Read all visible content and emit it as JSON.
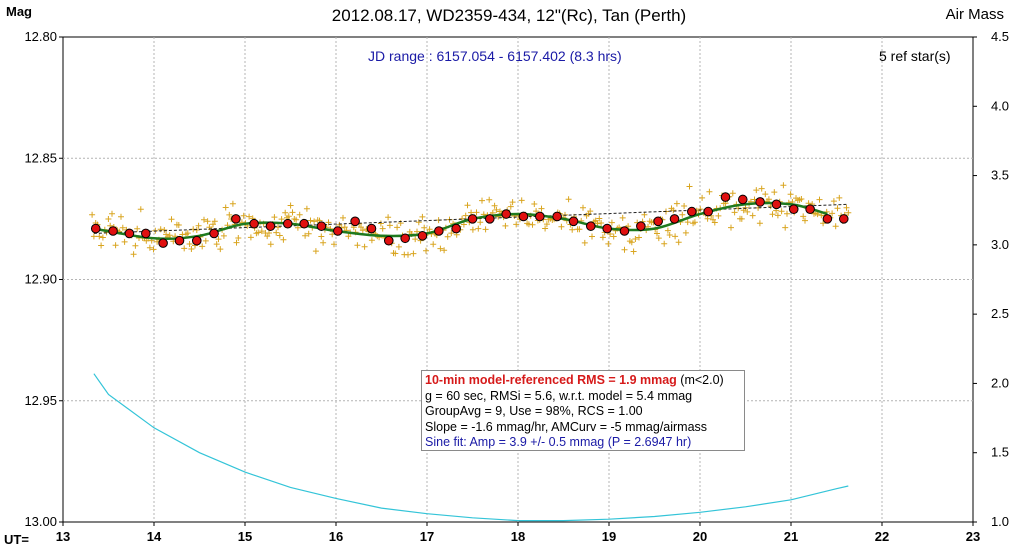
{
  "header": {
    "title": "2012.08.17, WD2359-434, 12\"(Rc), Tan (Perth)",
    "y_left_label": "Mag",
    "y_right_label": "Air Mass",
    "x_label": "UT="
  },
  "annotations": {
    "jd_range": "JD range : 6157.054 - 6157.402 (8.3 hrs)",
    "ref_stars": "5 ref star(s)"
  },
  "stats_box": {
    "rms_label": "10-min model-referenced RMS = 1.9 mmag",
    "rms_note": " (m<2.0)",
    "line2": "g = 60 sec, RMSi = 5.6, w.r.t. model = 5.4 mmag",
    "line3": "GroupAvg  = 9, Use = 98%, RCS = 1.00",
    "line4": "Slope = -1.6 mmag/hr,  AMCurv  = -5  mmag/airmass",
    "line5": "Sine fit: Amp = 3.9 +/- 0.5 mmag (P = 2.6947  hr)"
  },
  "colors": {
    "raw_points": "#d9a520",
    "group_avg_fill": "#e01010",
    "model_line": "#1f7a1f",
    "trend_line": "#222222",
    "airmass_line": "#33c4d8",
    "grid": "#b4b4b4"
  },
  "chart_data": {
    "type": "scatter",
    "title": "2012.08.17, WD2359-434, 12\"(Rc), Tan (Perth)",
    "xlabel": "UT=",
    "ylabel": "Mag",
    "y2label": "Air Mass",
    "xlim": [
      13,
      23
    ],
    "ylim": [
      12.8,
      13.0
    ],
    "y_inverted": true,
    "y2lim": [
      1.0,
      4.5
    ],
    "x_ticks": [
      "13",
      "14",
      "15",
      "16",
      "17",
      "18",
      "19",
      "20",
      "21",
      "22",
      "23"
    ],
    "y_ticks": [
      "12.80",
      "12.85",
      "12.90",
      "12.95",
      "13.00"
    ],
    "y2_ticks": [
      "1.0",
      "1.5",
      "2.0",
      "2.5",
      "3.0",
      "3.5",
      "4.0",
      "4.5"
    ],
    "grid": true,
    "series": [
      {
        "name": "GroupAvg",
        "x": [
          13.36,
          13.55,
          13.73,
          13.91,
          14.1,
          14.28,
          14.47,
          14.66,
          14.9,
          15.1,
          15.28,
          15.47,
          15.65,
          15.84,
          16.02,
          16.21,
          16.39,
          16.58,
          16.76,
          16.95,
          17.13,
          17.32,
          17.5,
          17.69,
          17.87,
          18.06,
          18.24,
          18.43,
          18.61,
          18.8,
          18.98,
          19.17,
          19.35,
          19.54,
          19.72,
          19.91,
          20.09,
          20.28,
          20.47,
          20.66,
          20.84,
          21.03,
          21.21,
          21.4,
          21.58
        ],
        "y": [
          12.879,
          12.88,
          12.881,
          12.881,
          12.885,
          12.884,
          12.884,
          12.881,
          12.875,
          12.877,
          12.878,
          12.877,
          12.877,
          12.878,
          12.88,
          12.876,
          12.879,
          12.884,
          12.883,
          12.882,
          12.88,
          12.879,
          12.875,
          12.875,
          12.873,
          12.874,
          12.874,
          12.874,
          12.876,
          12.878,
          12.879,
          12.88,
          12.878,
          12.876,
          12.875,
          12.872,
          12.872,
          12.866,
          12.867,
          12.868,
          12.869,
          12.871,
          12.871,
          12.875,
          12.875
        ]
      },
      {
        "name": "Sine model",
        "x": [
          13.34,
          14.0,
          14.5,
          15.0,
          15.5,
          16.0,
          16.5,
          17.0,
          17.5,
          18.0,
          18.5,
          19.0,
          19.5,
          20.0,
          20.5,
          21.0,
          21.4
        ],
        "y": [
          12.879,
          12.883,
          12.882,
          12.877,
          12.877,
          12.88,
          12.882,
          12.881,
          12.875,
          12.873,
          12.875,
          12.879,
          12.879,
          12.873,
          12.869,
          12.869,
          12.873
        ]
      },
      {
        "name": "Linear trend",
        "x": [
          13.34,
          21.63
        ],
        "y": [
          12.881,
          12.869
        ]
      },
      {
        "name": "Air Mass",
        "axis": "right",
        "x": [
          13.34,
          13.5,
          14.0,
          14.5,
          15.0,
          15.5,
          16.0,
          16.5,
          17.0,
          17.5,
          18.0,
          18.5,
          19.0,
          19.5,
          20.0,
          20.5,
          21.0,
          21.5,
          21.63
        ],
        "y": [
          2.07,
          1.92,
          1.68,
          1.5,
          1.36,
          1.25,
          1.17,
          1.1,
          1.06,
          1.03,
          1.01,
          1.01,
          1.02,
          1.04,
          1.07,
          1.11,
          1.16,
          1.24,
          1.26
        ]
      }
    ],
    "raw_points": {
      "name": "Raw observations",
      "x_range": [
        13.32,
        21.63
      ],
      "count": 420,
      "scatter_mmag": 5.6
    }
  }
}
